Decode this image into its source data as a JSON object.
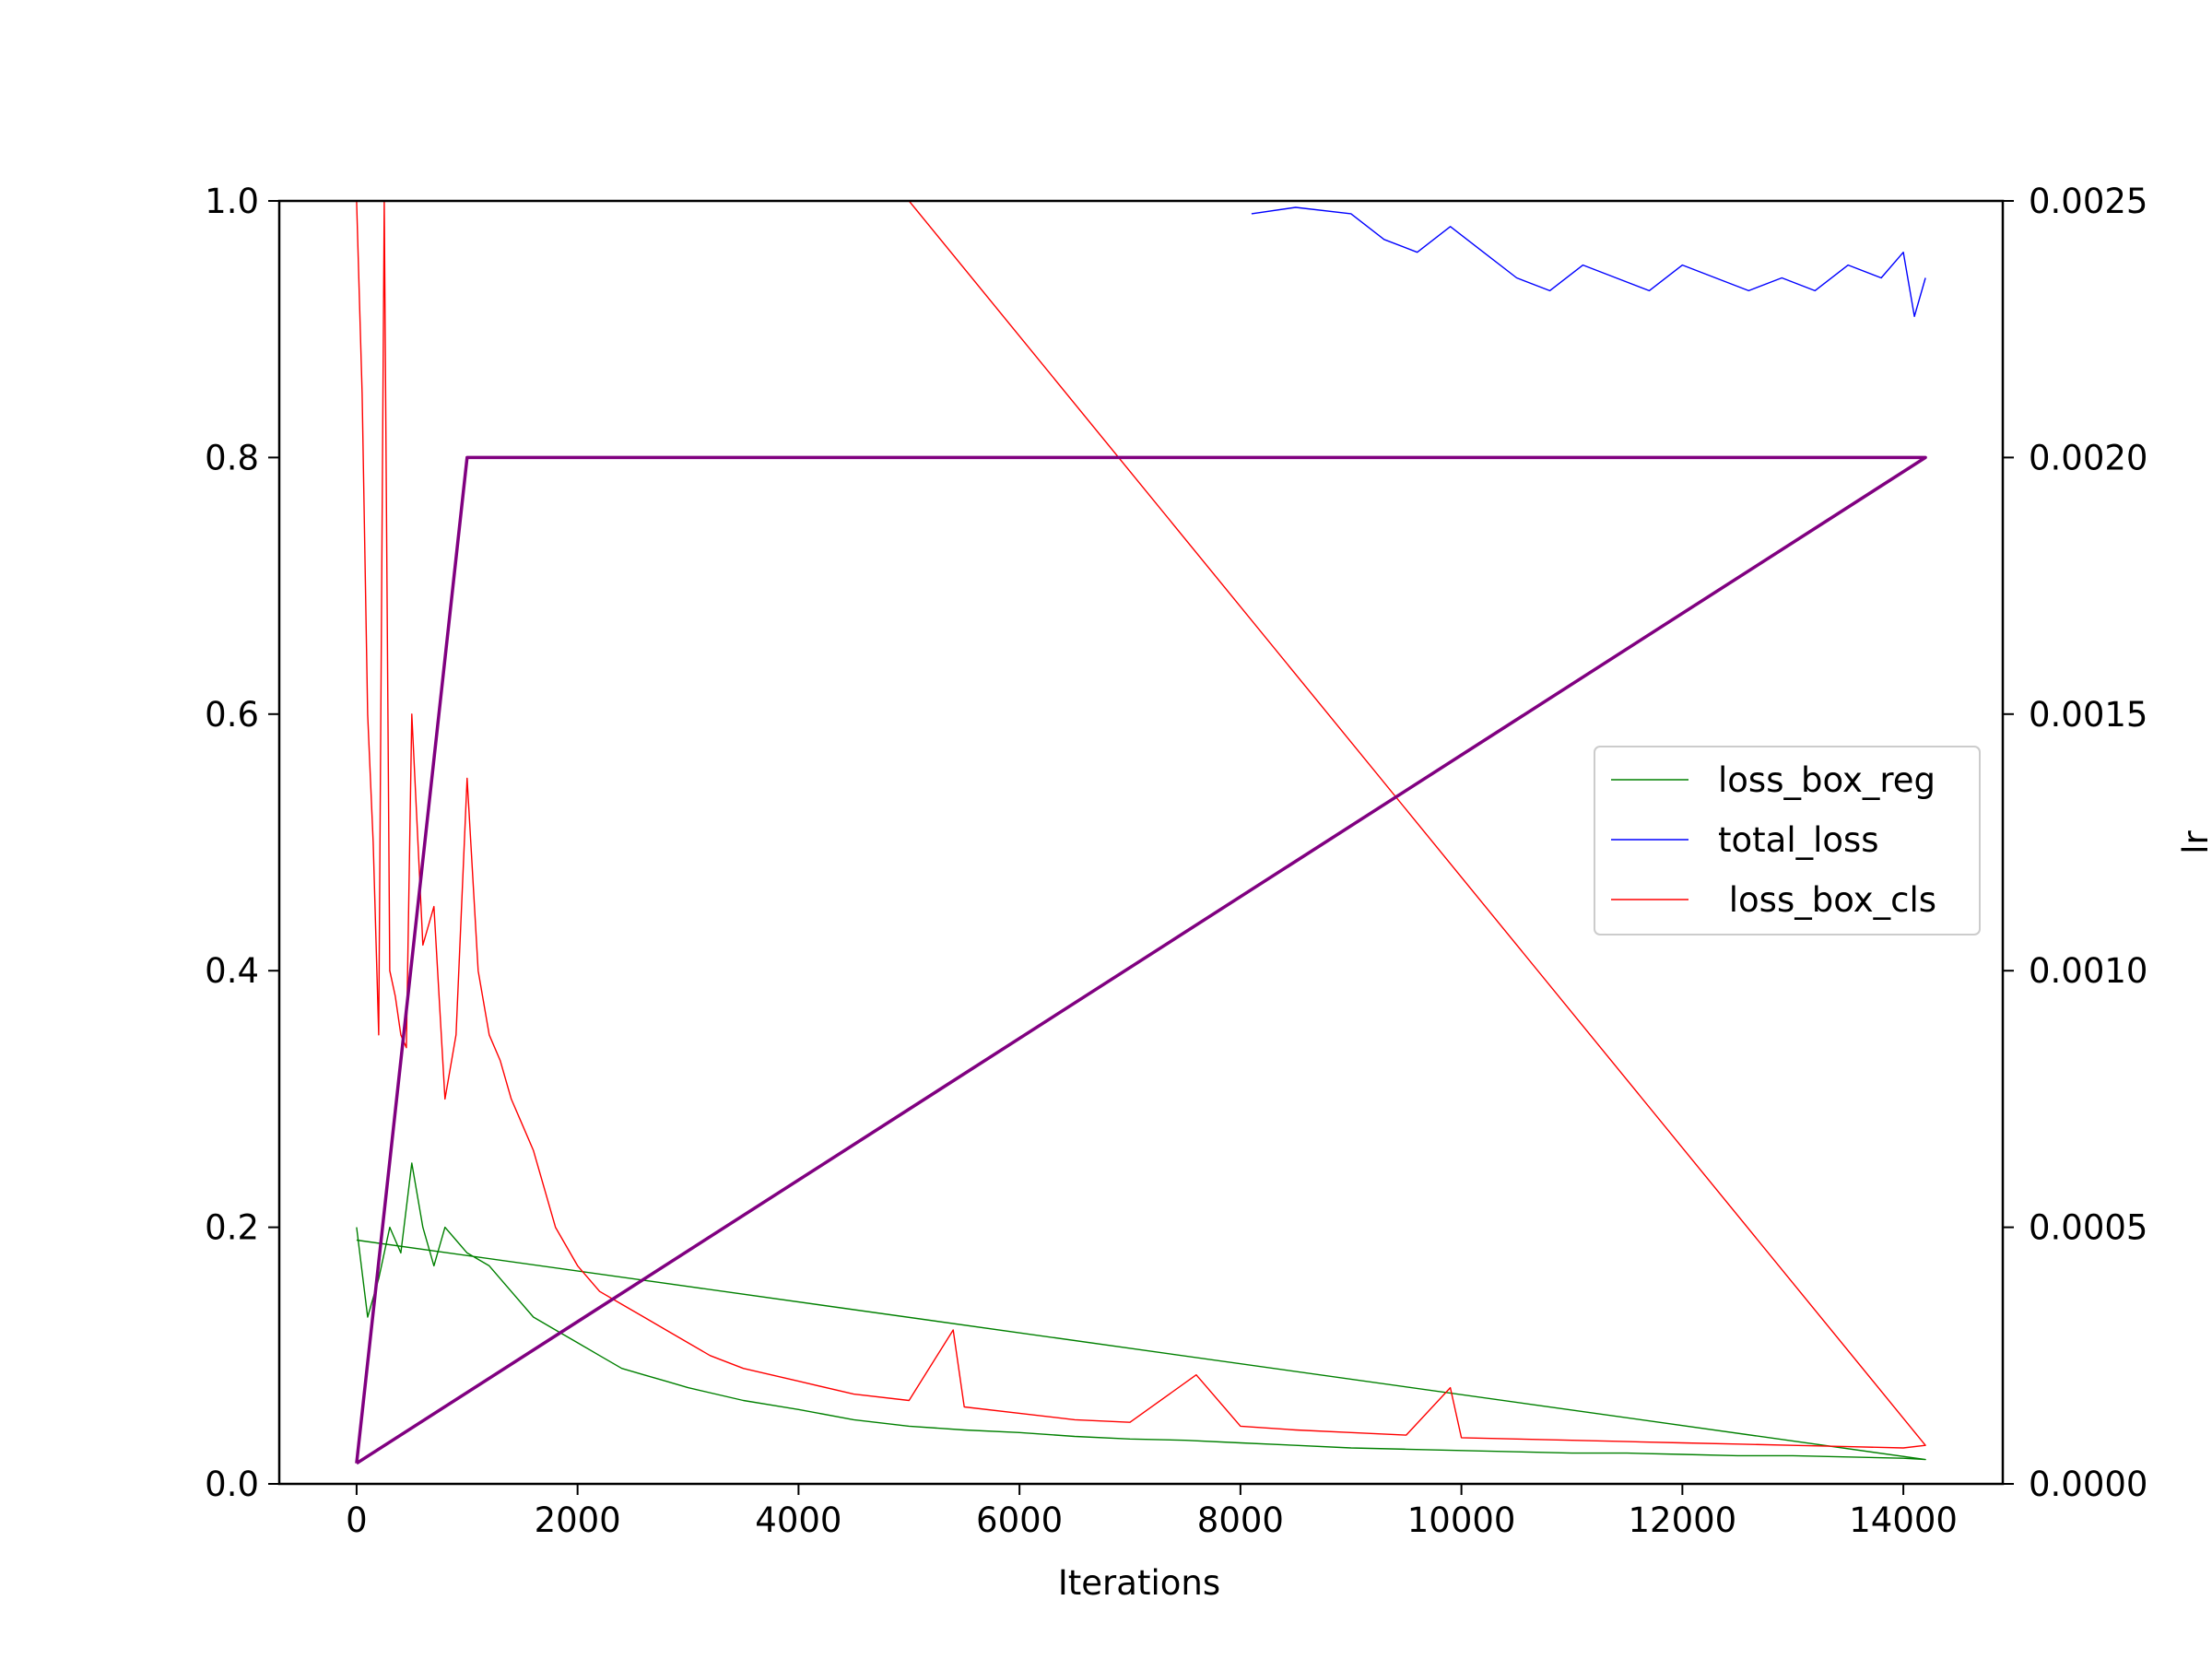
{
  "chart_data": {
    "type": "line",
    "title": "",
    "xlabel": "Iterations",
    "ylabel": "",
    "y2label": "lr",
    "xlim": [
      -700,
      14900
    ],
    "ylim": [
      0,
      1.0
    ],
    "y2lim": [
      0,
      0.0025
    ],
    "x_ticks": [
      0,
      2000,
      4000,
      6000,
      8000,
      10000,
      12000,
      14000
    ],
    "x_tick_labels": [
      "0",
      "2000",
      "4000",
      "6000",
      "8000",
      "10000",
      "12000",
      "14000"
    ],
    "y_ticks": [
      0.0,
      0.2,
      0.4,
      0.6,
      0.8,
      1.0
    ],
    "y_tick_labels": [
      "0.0",
      "0.2",
      "0.4",
      "0.6",
      "0.8",
      "1.0"
    ],
    "y2_ticks": [
      0.0,
      0.0005,
      0.001,
      0.0015,
      0.002,
      0.0025
    ],
    "y2_tick_labels": [
      "0.0000",
      "0.0005",
      "0.0010",
      "0.0015",
      "0.0020",
      "0.0025"
    ],
    "grid": false,
    "legend": {
      "placement": "center-right",
      "entries": [
        {
          "label": "loss_box_reg",
          "color": "#008000"
        },
        {
          "label": "total_loss",
          "color": "#0000ff"
        },
        {
          "label": " loss_box_cls",
          "color": "#ff0000"
        }
      ]
    },
    "series": [
      {
        "name": "loss_box_reg",
        "color": "#008000",
        "axis": "left",
        "x": [
          0,
          100,
          200,
          300,
          400,
          500,
          600,
          700,
          800,
          900,
          1000,
          1200,
          1400,
          1600,
          1800,
          2000,
          2200,
          2400,
          2600,
          2800,
          3000,
          3500,
          4000,
          4500,
          5000,
          5500,
          6000,
          6500,
          7000,
          7500,
          8000,
          8500,
          9000,
          9500,
          10000,
          10500,
          11000,
          11500,
          12000,
          12500,
          13000,
          13500,
          14000,
          14200,
          0
        ],
        "y": [
          0.2,
          0.13,
          0.16,
          0.2,
          0.18,
          0.25,
          0.2,
          0.17,
          0.2,
          0.19,
          0.18,
          0.17,
          0.15,
          0.13,
          0.12,
          0.11,
          0.1,
          0.09,
          0.085,
          0.08,
          0.075,
          0.065,
          0.058,
          0.05,
          0.045,
          0.042,
          0.04,
          0.037,
          0.035,
          0.034,
          0.032,
          0.03,
          0.028,
          0.027,
          0.026,
          0.025,
          0.024,
          0.024,
          0.023,
          0.022,
          0.022,
          0.021,
          0.02,
          0.019,
          0.19
        ]
      },
      {
        "name": "total_loss",
        "color": "#0000ff",
        "axis": "left",
        "x": [
          8100,
          8500,
          9000,
          9300,
          9600,
          9900,
          10200,
          10500,
          10800,
          11100,
          11400,
          11700,
          12000,
          12300,
          12600,
          12900,
          13200,
          13500,
          13800,
          14000,
          14100,
          14200
        ],
        "y": [
          0.99,
          0.995,
          0.99,
          0.97,
          0.96,
          0.98,
          0.96,
          0.94,
          0.93,
          0.95,
          0.94,
          0.93,
          0.95,
          0.94,
          0.93,
          0.94,
          0.93,
          0.95,
          0.94,
          0.96,
          0.91,
          0.94
        ]
      },
      {
        "name": " loss_box_cls",
        "color": "#ff0000",
        "axis": "left",
        "x": [
          0,
          50,
          100,
          150,
          200,
          250,
          300,
          350,
          400,
          450,
          500,
          600,
          700,
          800,
          900,
          1000,
          1100,
          1200,
          1300,
          1400,
          1500,
          1600,
          1800,
          2000,
          2200,
          2400,
          2600,
          2800,
          3000,
          3200,
          3500,
          4000,
          4500,
          5000,
          5400,
          5500,
          6000,
          6500,
          7000,
          7600,
          8000,
          8500,
          9000,
          9500,
          9900,
          10000,
          10500,
          11000,
          11500,
          12000,
          12500,
          13000,
          13500,
          14000,
          14200,
          5000
        ],
        "y": [
          1.0,
          0.85,
          0.6,
          0.5,
          0.35,
          1.0,
          0.4,
          0.38,
          0.35,
          0.34,
          0.6,
          0.42,
          0.45,
          0.3,
          0.35,
          0.55,
          0.4,
          0.35,
          0.33,
          0.3,
          0.28,
          0.26,
          0.2,
          0.17,
          0.15,
          0.14,
          0.13,
          0.12,
          0.11,
          0.1,
          0.09,
          0.08,
          0.07,
          0.065,
          0.12,
          0.06,
          0.055,
          0.05,
          0.048,
          0.085,
          0.045,
          0.042,
          0.04,
          0.038,
          0.075,
          0.036,
          0.035,
          0.034,
          0.033,
          0.032,
          0.031,
          0.03,
          0.029,
          0.028,
          0.03,
          1.0
        ]
      },
      {
        "name": "lr",
        "color": "#800080",
        "axis": "right",
        "x": [
          0,
          1000,
          14200,
          0
        ],
        "y": [
          4e-05,
          0.002,
          0.002,
          4e-05
        ]
      }
    ]
  }
}
